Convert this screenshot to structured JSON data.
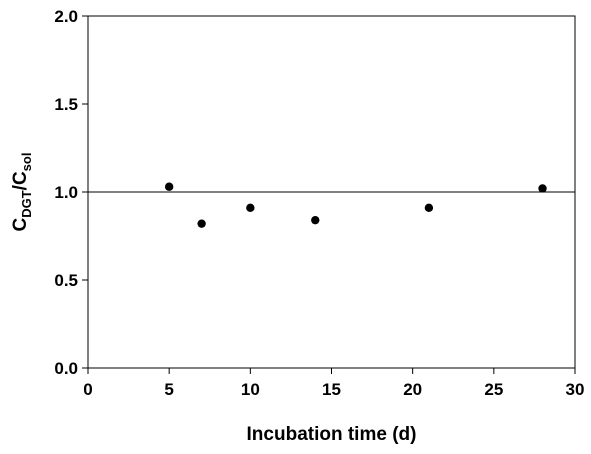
{
  "chart_data": {
    "type": "scatter",
    "title": "",
    "xlabel": "Incubation time (d)",
    "ylabel": {
      "main": "C",
      "main_sub": "DGT",
      "separator": "/C",
      "denom_sub": "sol"
    },
    "xlim": [
      0,
      30
    ],
    "ylim": [
      0.0,
      2.0
    ],
    "x_ticks": [
      "0",
      "5",
      "10",
      "15",
      "20",
      "25",
      "30"
    ],
    "y_ticks": [
      "0.0",
      "0.5",
      "1.0",
      "1.5",
      "2.0"
    ],
    "grid": false,
    "legend": "none",
    "series": [
      {
        "x": [
          5,
          7,
          10,
          14,
          21,
          28
        ],
        "y": [
          1.03,
          0.82,
          0.91,
          0.84,
          0.91,
          1.02
        ]
      }
    ],
    "reference_lines": [
      {
        "y": 1.0
      }
    ],
    "colors": {
      "marker": "#000000",
      "axis": "#000000",
      "reference": "#000000"
    }
  }
}
